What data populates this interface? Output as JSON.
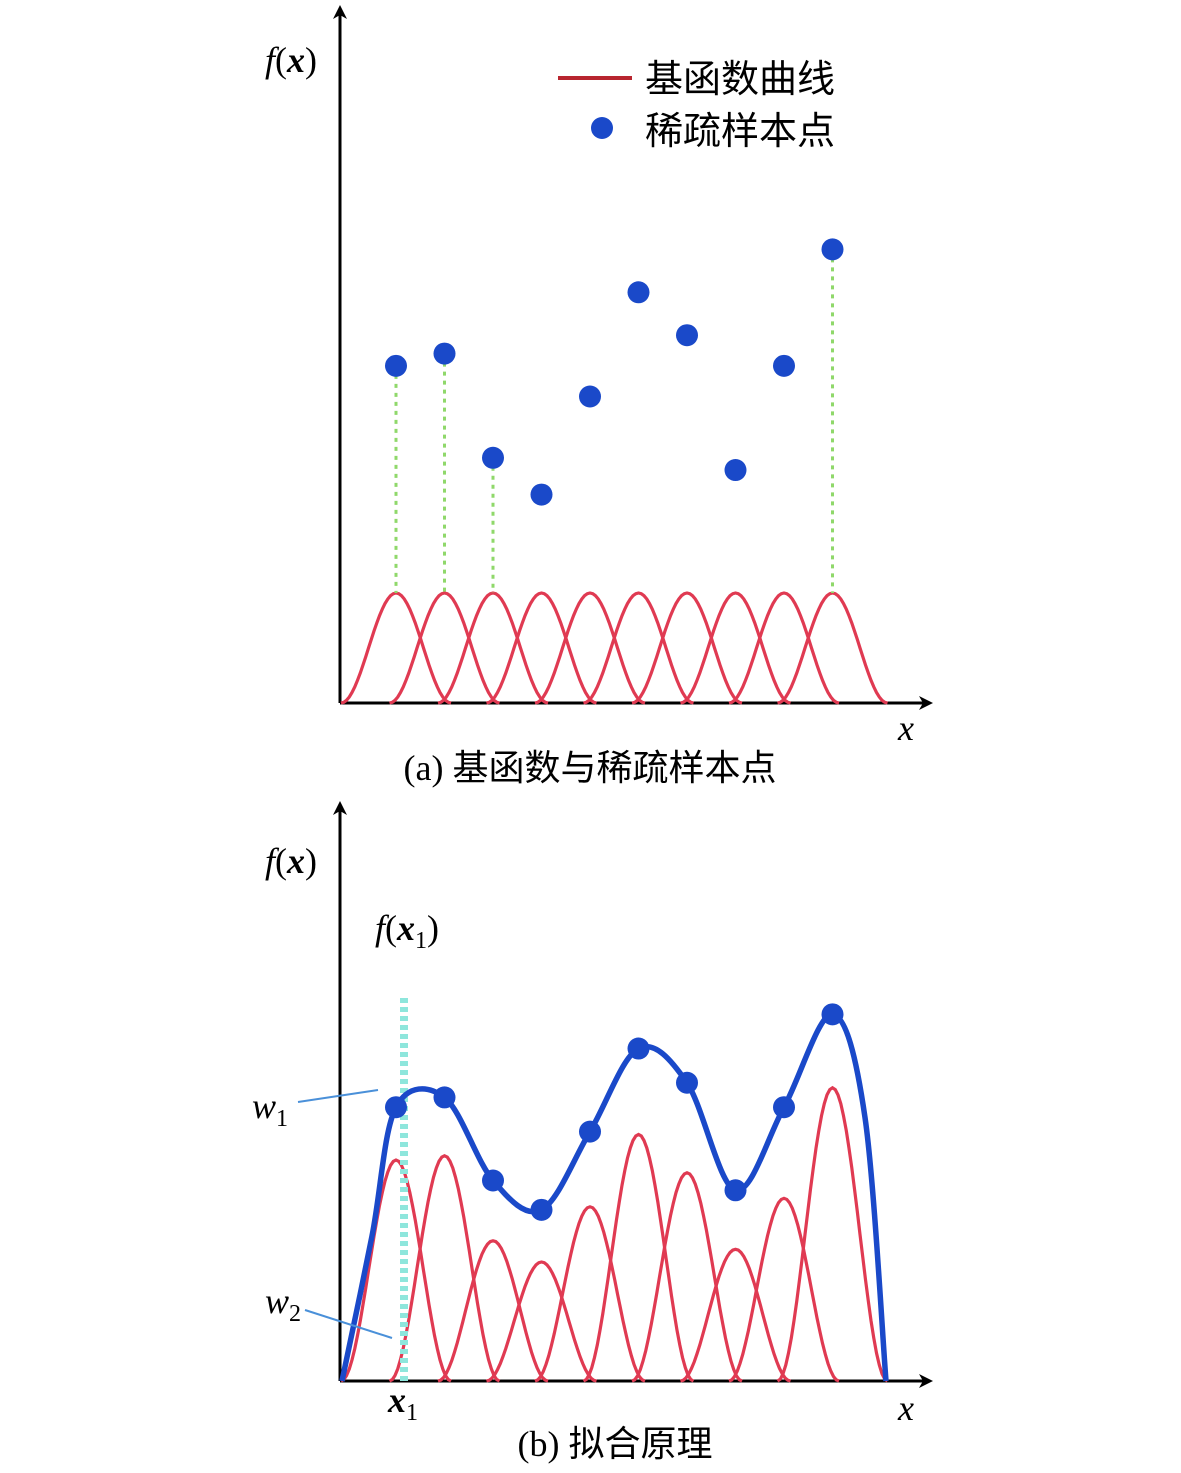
{
  "colors": {
    "basis": "#e03a52",
    "fit": "#1a49c9",
    "points": "#1a49c9",
    "droplines": "#8fd86a",
    "x1_marker": "#8ee6dc",
    "leaders": "#4a90d9"
  },
  "panel_a": {
    "y_axis_label": {
      "f": "f",
      "open": "(",
      "x": "x",
      "close": ")"
    },
    "x_axis_label": "x",
    "legend": {
      "curve": "基函数曲线",
      "points": "稀疏样本点"
    },
    "caption": "(a) 基函数与稀疏样本点"
  },
  "panel_b": {
    "y_axis_label": {
      "f": "f",
      "open": "(",
      "x": "x",
      "close": ")"
    },
    "x_axis_label": "x",
    "fx1_label": {
      "f": "f",
      "open": "(",
      "x": "x",
      "sub": "1",
      "close": ")"
    },
    "w1": {
      "w": "w",
      "sub": "1"
    },
    "w2": {
      "w": "w",
      "sub": "2"
    },
    "x1_tick": {
      "x": "x",
      "sub": "1"
    },
    "caption": "(b) 拟合原理"
  },
  "chart_data": {
    "type": "line",
    "basis_count": 10,
    "basis_centers_index": [
      1,
      2,
      3,
      4,
      5,
      6,
      7,
      8,
      9,
      10
    ],
    "sample_values_relative": [
      0.55,
      0.57,
      0.4,
      0.34,
      0.5,
      0.67,
      0.6,
      0.38,
      0.55,
      0.74
    ],
    "fit_weights_relative": [
      0.52,
      0.53,
      0.33,
      0.28,
      0.41,
      0.58,
      0.49,
      0.31,
      0.43,
      0.69
    ]
  }
}
